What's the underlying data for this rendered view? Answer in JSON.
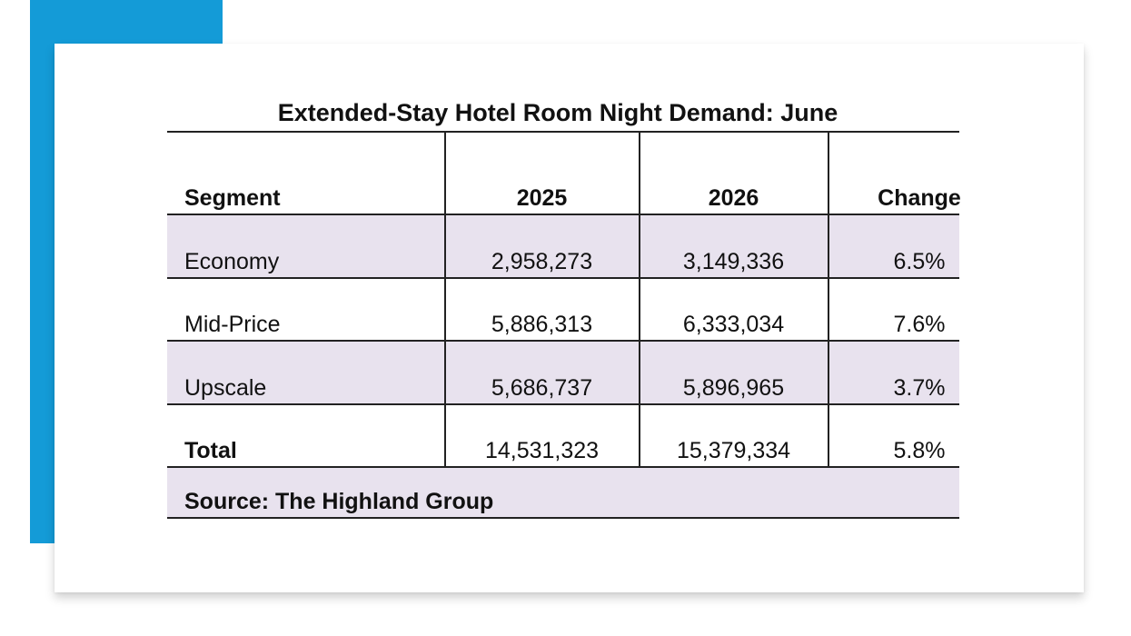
{
  "chart_data": {
    "type": "table",
    "title": "Extended-Stay Hotel Room Night Demand: June",
    "columns": [
      "Segment",
      "2025",
      "2026",
      "Change"
    ],
    "rows": [
      {
        "segment": "Economy",
        "y2025": "2,958,273",
        "y2026": "3,149,336",
        "change": "6.5%"
      },
      {
        "segment": "Mid-Price",
        "y2025": "5,886,313",
        "y2026": "6,333,034",
        "change": "7.6%"
      },
      {
        "segment": "Upscale",
        "y2025": "5,686,737",
        "y2026": "5,896,965",
        "change": "3.7%"
      }
    ],
    "total": {
      "segment": "Total",
      "y2025": "14,531,323",
      "y2026": "15,379,334",
      "change": "5.8%"
    },
    "source": "Source: The Highland Group"
  },
  "colors": {
    "accent": "#149bd7",
    "band": "#e8e2ee",
    "rule": "#222222"
  }
}
